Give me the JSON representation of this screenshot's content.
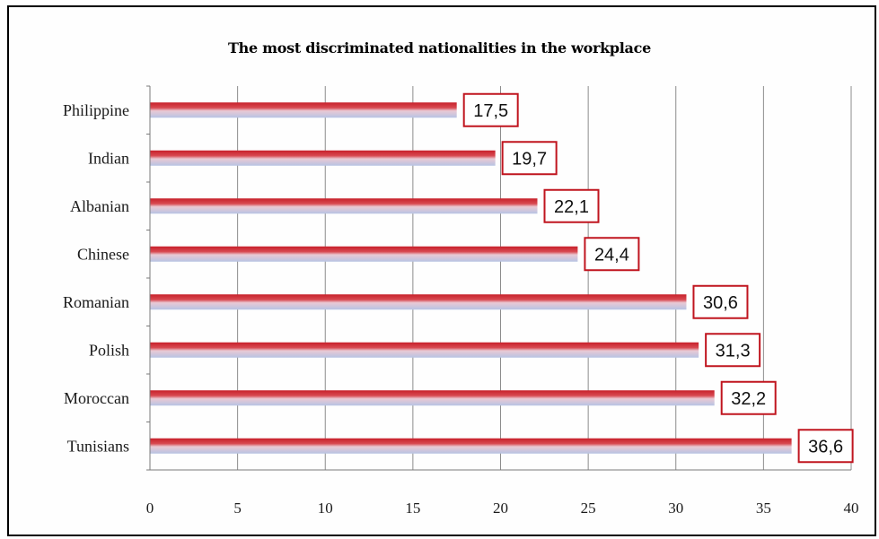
{
  "chart_data": {
    "type": "bar",
    "orientation": "horizontal",
    "title": "The most discriminated nationalities in the workplace",
    "categories": [
      "Philippine",
      "Indian",
      "Albanian",
      "Chinese",
      "Romanian",
      "Polish",
      "Moroccan",
      "Tunisians"
    ],
    "values": [
      17.5,
      19.7,
      22.1,
      24.4,
      30.6,
      31.3,
      32.2,
      36.6
    ],
    "value_labels": [
      "17,5",
      "19,7",
      "22,1",
      "24,4",
      "30,6",
      "31,3",
      "32,2",
      "36,6"
    ],
    "xlim": [
      0,
      40
    ],
    "xticks": [
      0,
      5,
      10,
      15,
      20,
      25,
      30,
      35,
      40
    ],
    "xlabel": "",
    "ylabel": "",
    "grid": "vertical",
    "legend": "none",
    "colors": {
      "bar_top": "#c8202a",
      "bar_bottom": "#b7c3e3",
      "label_border": "#c0151f",
      "grid": "#8c8c8c"
    }
  }
}
